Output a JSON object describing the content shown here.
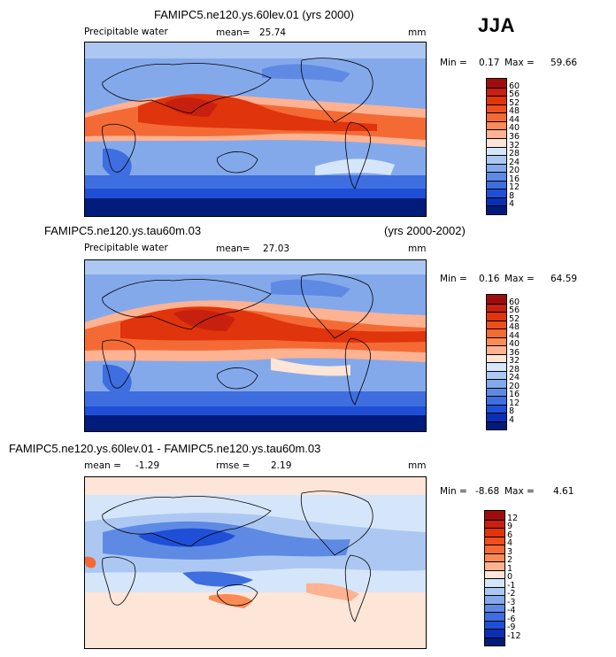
{
  "season": "JJA",
  "panels": [
    {
      "title": "FAMIPC5.ne120.ys.60lev.01 (yrs 2000)",
      "years": "",
      "variable": "Precipitable water",
      "stat_label": "mean=",
      "stat_value": "25.74",
      "stat2_label": "",
      "stat2_value": "",
      "units": "mm",
      "min_label": "Min =",
      "min": "0.17",
      "max_label": "Max =",
      "max": "59.66",
      "levels": [
        "60",
        "56",
        "52",
        "48",
        "44",
        "40",
        "36",
        "32",
        "28",
        "24",
        "20",
        "16",
        "12",
        "8",
        "4"
      ],
      "colors": [
        "#9e0d0d",
        "#c8200e",
        "#e0340c",
        "#ef4f1d",
        "#f46a35",
        "#f98b57",
        "#fdb292",
        "#fde5d8",
        "#d6e6fa",
        "#acc8f2",
        "#84a9eb",
        "#5e8ae4",
        "#3e6ee0",
        "#1f4fd6",
        "#0b2fb4",
        "#001b7a"
      ]
    },
    {
      "title": "FAMIPC5.ne120.ys.tau60m.03",
      "years": "(yrs 2000-2002)",
      "variable": "Precipitable water",
      "stat_label": "mean=",
      "stat_value": "27.03",
      "stat2_label": "",
      "stat2_value": "",
      "units": "mm",
      "min_label": "Min =",
      "min": "0.16",
      "max_label": "Max =",
      "max": "64.59",
      "levels": [
        "60",
        "56",
        "52",
        "48",
        "44",
        "40",
        "36",
        "32",
        "28",
        "24",
        "20",
        "16",
        "12",
        "8",
        "4"
      ],
      "colors": [
        "#9e0d0d",
        "#c8200e",
        "#e0340c",
        "#ef4f1d",
        "#f46a35",
        "#f98b57",
        "#fdb292",
        "#fde5d8",
        "#d6e6fa",
        "#acc8f2",
        "#84a9eb",
        "#5e8ae4",
        "#3e6ee0",
        "#1f4fd6",
        "#0b2fb4",
        "#001b7a"
      ]
    },
    {
      "title": "FAMIPC5.ne120.ys.60lev.01 - FAMIPC5.ne120.ys.tau60m.03",
      "years": "",
      "variable": "",
      "stat_label": "mean =",
      "stat_value": "-1.29",
      "stat2_label": "rmse =",
      "stat2_value": "2.19",
      "units": "mm",
      "min_label": "Min =",
      "min": "-8.68",
      "max_label": "Max =",
      "max": "4.61",
      "levels": [
        "12",
        "9",
        "6",
        "4",
        "3",
        "2",
        "1",
        "0",
        "-1",
        "-2",
        "-3",
        "-4",
        "-6",
        "-9",
        "-12"
      ],
      "colors": [
        "#9e0d0d",
        "#c8200e",
        "#e0340c",
        "#ef4f1d",
        "#f46a35",
        "#f98b57",
        "#fdb292",
        "#fde5d8",
        "#d6e6fa",
        "#acc8f2",
        "#84a9eb",
        "#5e8ae4",
        "#3e6ee0",
        "#1f4fd6",
        "#0b2fb4",
        "#001b7a"
      ]
    }
  ]
}
